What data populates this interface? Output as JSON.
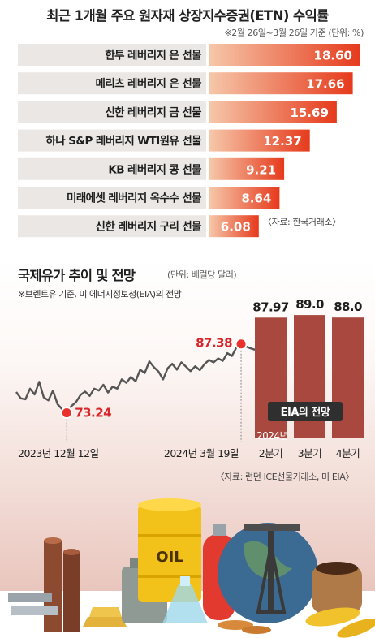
{
  "header": {
    "title": "최근 1개월 주요 원자재 상장지수증권(ETN) 수익률",
    "subtitle": "※2월 26일~3월 26일 기준 (단위: %)"
  },
  "etf_source": "〈자료: 한국거래소〉",
  "oil": {
    "title": "국제유가 추이 및 전망",
    "unit": "(단위: 배럴당 달러)",
    "note": "※브렌트유 기준, 미 에너지정보청(EIA)의  전망",
    "source": "〈자료: 런던 ICE선물거래소, 미 EIA〉"
  },
  "chart_data": [
    {
      "type": "bar",
      "title": "최근 1개월 주요 원자재 상장지수증권(ETN) 수익률",
      "unit": "%",
      "orientation": "horizontal",
      "categories": [
        "한투 레버리지 은 선물",
        "메리츠 레버리지 은 선물",
        "신한 레버리지 금 선물",
        "하나 S&P 레버리지 WTI원유 선물",
        "KB 레버리지 콩 선물",
        "미래에셋 레버리지 옥수수 선물",
        "신한 레버리지 구리 선물"
      ],
      "values": [
        18.6,
        17.66,
        15.69,
        12.37,
        9.21,
        8.64,
        6.08
      ],
      "value_labels": [
        "18.60",
        "17.66",
        "15.69",
        "12.37",
        "9.21",
        "8.64",
        "6.08"
      ],
      "xlim": [
        0,
        18.6
      ],
      "colors": {
        "bar_start": "#f6c7a9",
        "bar_end": "#e63a1c",
        "label_bg": "#ebe7e4"
      }
    },
    {
      "type": "line",
      "title": "국제유가 추이 및 전망",
      "unit": "배럴당 달러",
      "x_labels": [
        "2023년 12월 12일",
        "2024년 3월 19일"
      ],
      "ylim": [
        68,
        94
      ],
      "series": [
        {
          "values": [
            77.5,
            76.2,
            76.0,
            78.2,
            77.0,
            79.6,
            76.4,
            75.8,
            77.8,
            75.0,
            74.0,
            73.24,
            74.6,
            75.4,
            76.9,
            77.6,
            76.7,
            78.2,
            77.8,
            79.0,
            77.4,
            78.6,
            78.2,
            80.1,
            79.4,
            80.6,
            79.7,
            82.1,
            81.4,
            83.8,
            82.6,
            81.7,
            80.1,
            82.4,
            83.3,
            82.1,
            83.6,
            82.7,
            81.8,
            82.8,
            82.0,
            83.2,
            84.1,
            83.6,
            84.4,
            83.9,
            85.5,
            84.9,
            86.7,
            87.38,
            86.9,
            86.5,
            86.2
          ]
        }
      ],
      "annotations": [
        {
          "label": "73.24",
          "value": 73.24,
          "date": "2023년 12월 12일"
        },
        {
          "label": "87.38",
          "value": 87.38,
          "date": "2024년 3월 19일"
        }
      ],
      "colors": {
        "line": "#555555",
        "marker": "#e8322b",
        "label": "#d8262b"
      }
    },
    {
      "type": "bar",
      "title": "EIA의 전망",
      "group_label": "2024년",
      "categories": [
        "2분기",
        "3분기",
        "4분기"
      ],
      "values": [
        87.97,
        89.0,
        88.0
      ],
      "value_labels": [
        "87.97",
        "89.0",
        "88.0"
      ],
      "colors": {
        "bar": "#a8483e"
      }
    }
  ]
}
